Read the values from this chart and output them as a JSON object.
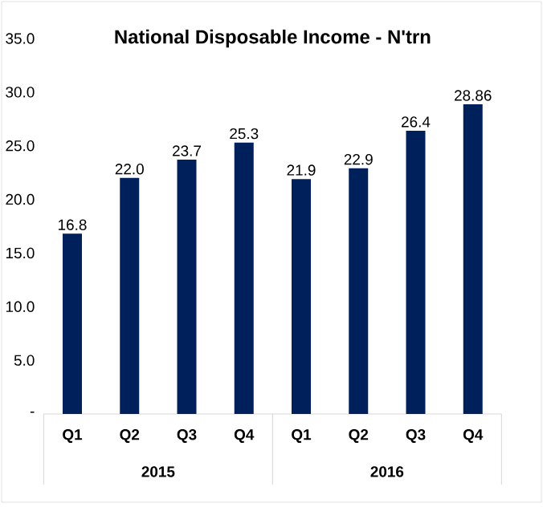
{
  "chart_data": {
    "type": "bar",
    "title": "National Disposable Income - N'trn",
    "categories": [
      "Q1",
      "Q2",
      "Q3",
      "Q4",
      "Q1",
      "Q2",
      "Q3",
      "Q4"
    ],
    "values": [
      16.8,
      22.0,
      23.7,
      25.3,
      21.9,
      22.9,
      26.4,
      28.86
    ],
    "value_labels": [
      "16.8",
      "22.0",
      "23.7",
      "25.3",
      "21.9",
      "22.9",
      "26.4",
      "28.86"
    ],
    "color": "#00205b",
    "ylim": [
      0,
      35
    ],
    "yticks": [
      {
        "value": 0,
        "label": "-"
      },
      {
        "value": 5,
        "label": "5.0"
      },
      {
        "value": 10,
        "label": "10.0"
      },
      {
        "value": 15,
        "label": "15.0"
      },
      {
        "value": 20,
        "label": "20.0"
      },
      {
        "value": 25,
        "label": "25.0"
      },
      {
        "value": 30,
        "label": "30.0"
      },
      {
        "value": 35,
        "label": "35.0"
      }
    ],
    "annotations": [
      "2015",
      "2016"
    ]
  }
}
